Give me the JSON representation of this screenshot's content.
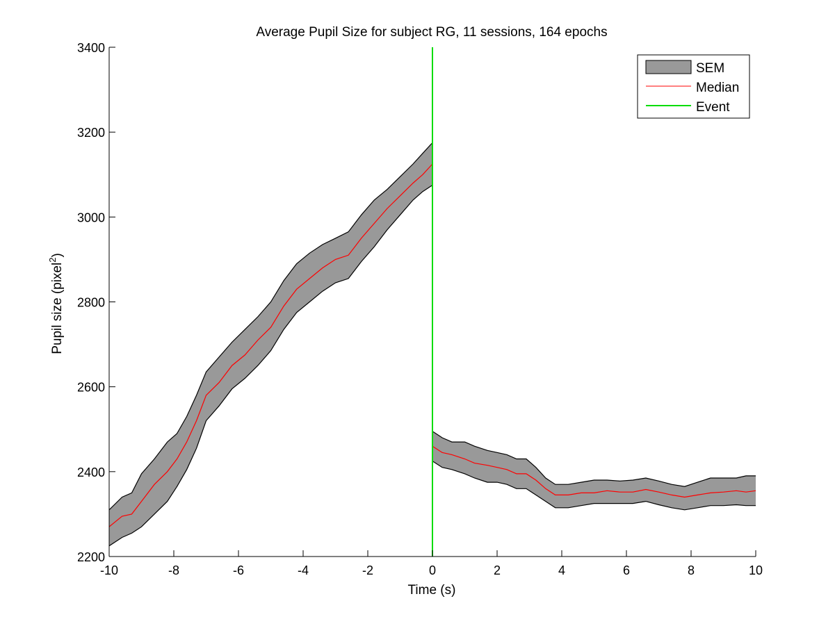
{
  "chart_data": {
    "type": "line",
    "title": "Average Pupil Size for subject RG, 11 sessions, 164 epochs",
    "xlabel": "Time (s)",
    "ylabel_main": "Pupil size (pixel",
    "ylabel_sup": "2",
    "ylabel_close": ")",
    "xlim": [
      -10,
      10
    ],
    "ylim": [
      2200,
      3400
    ],
    "x_ticks": [
      -10,
      -8,
      -6,
      -4,
      -2,
      0,
      2,
      4,
      6,
      8,
      10
    ],
    "y_ticks": [
      2200,
      2400,
      2600,
      2800,
      3000,
      3200,
      3400
    ],
    "grid": false,
    "legend_position": "top-right",
    "colors": {
      "sem_fill": "#999999",
      "sem_edge": "#000000",
      "median": "#ff0000",
      "event": "#00dd00"
    },
    "series": [
      {
        "name": "Median",
        "x": [
          -10,
          -9.6,
          -9.3,
          -9,
          -8.6,
          -8.2,
          -7.9,
          -7.6,
          -7.3,
          -7,
          -6.6,
          -6.2,
          -5.8,
          -5.4,
          -5,
          -4.6,
          -4.2,
          -3.8,
          -3.4,
          -3,
          -2.6,
          -2.2,
          -1.8,
          -1.4,
          -1,
          -0.6,
          -0.3,
          0,
          0,
          0.3,
          0.6,
          1,
          1.3,
          1.7,
          2,
          2.3,
          2.6,
          2.9,
          3.2,
          3.5,
          3.8,
          4.2,
          4.6,
          5,
          5.4,
          5.8,
          6.2,
          6.6,
          7,
          7.4,
          7.8,
          8.2,
          8.6,
          9,
          9.4,
          9.7,
          10
        ],
        "y": [
          2270,
          2295,
          2300,
          2330,
          2370,
          2400,
          2430,
          2470,
          2520,
          2580,
          2610,
          2650,
          2675,
          2710,
          2740,
          2790,
          2830,
          2855,
          2880,
          2900,
          2910,
          2950,
          2985,
          3020,
          3050,
          3080,
          3100,
          3125,
          2460,
          2445,
          2440,
          2430,
          2420,
          2415,
          2410,
          2405,
          2395,
          2395,
          2380,
          2360,
          2345,
          2345,
          2350,
          2350,
          2355,
          2352,
          2352,
          2358,
          2352,
          2345,
          2340,
          2345,
          2350,
          2352,
          2355,
          2352,
          2355
        ]
      },
      {
        "name": "SEM",
        "x": [
          -10,
          -9.6,
          -9.3,
          -9,
          -8.6,
          -8.2,
          -7.9,
          -7.6,
          -7.3,
          -7,
          -6.6,
          -6.2,
          -5.8,
          -5.4,
          -5,
          -4.6,
          -4.2,
          -3.8,
          -3.4,
          -3,
          -2.6,
          -2.2,
          -1.8,
          -1.4,
          -1,
          -0.6,
          -0.3,
          0,
          0,
          0.3,
          0.6,
          1,
          1.3,
          1.7,
          2,
          2.3,
          2.6,
          2.9,
          3.2,
          3.5,
          3.8,
          4.2,
          4.6,
          5,
          5.4,
          5.8,
          6.2,
          6.6,
          7,
          7.4,
          7.8,
          8.2,
          8.6,
          9,
          9.4,
          9.7,
          10
        ],
        "upper": [
          2310,
          2340,
          2350,
          2395,
          2430,
          2470,
          2490,
          2530,
          2580,
          2635,
          2670,
          2705,
          2735,
          2765,
          2800,
          2850,
          2890,
          2915,
          2935,
          2950,
          2965,
          3005,
          3040,
          3065,
          3095,
          3125,
          3150,
          3175,
          2495,
          2480,
          2470,
          2470,
          2460,
          2450,
          2445,
          2440,
          2430,
          2430,
          2410,
          2385,
          2370,
          2370,
          2375,
          2380,
          2380,
          2378,
          2380,
          2385,
          2378,
          2370,
          2365,
          2375,
          2385,
          2385,
          2385,
          2390,
          2390
        ],
        "lower": [
          2225,
          2245,
          2255,
          2270,
          2300,
          2330,
          2365,
          2405,
          2455,
          2520,
          2555,
          2595,
          2620,
          2650,
          2685,
          2735,
          2775,
          2800,
          2825,
          2845,
          2855,
          2895,
          2930,
          2970,
          3005,
          3040,
          3060,
          3075,
          2425,
          2410,
          2405,
          2395,
          2385,
          2375,
          2375,
          2370,
          2360,
          2360,
          2345,
          2330,
          2315,
          2315,
          2320,
          2325,
          2325,
          2325,
          2325,
          2330,
          2322,
          2315,
          2310,
          2315,
          2320,
          2320,
          2322,
          2320,
          2320
        ]
      },
      {
        "name": "Event",
        "x": [
          0,
          0
        ],
        "y": [
          2200,
          3400
        ]
      }
    ]
  }
}
